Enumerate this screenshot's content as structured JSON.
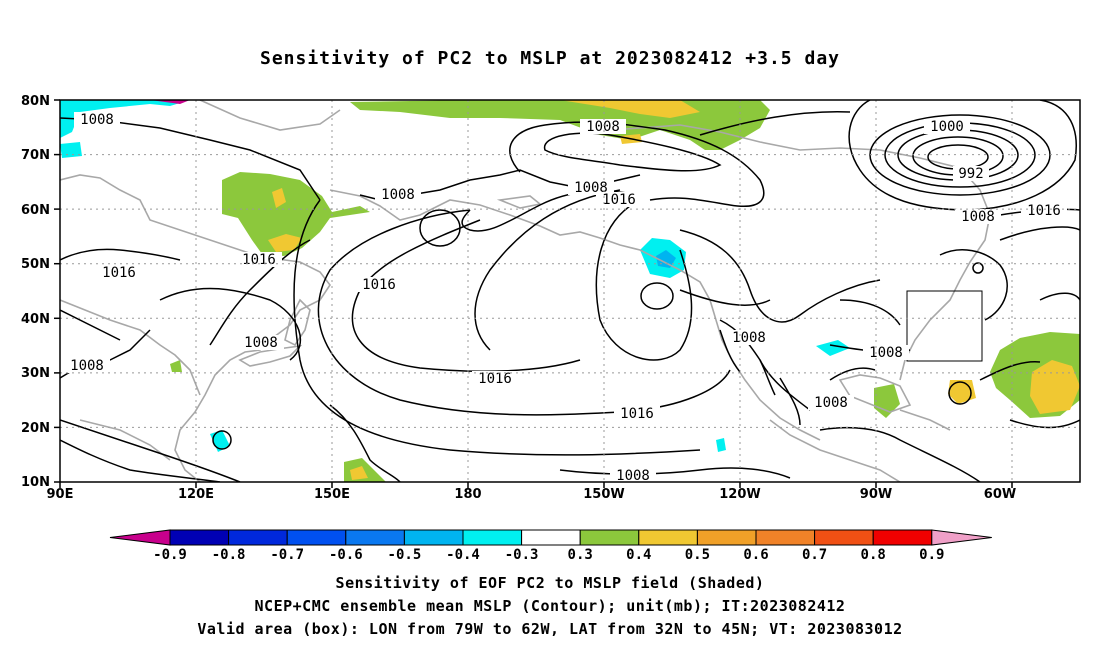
{
  "title": "Sensitivity of PC2 to MSLP at 2023082412 +3.5 day",
  "lat_labels": [
    "80N",
    "70N",
    "60N",
    "50N",
    "40N",
    "30N",
    "20N",
    "10N"
  ],
  "lon_labels": [
    "90E",
    "120E",
    "150E",
    "180",
    "150W",
    "120W",
    "90W",
    "60W"
  ],
  "contour_labels": [
    "1008",
    "1008",
    "1008",
    "1000",
    "992",
    "1008",
    "1016",
    "1016",
    "1008",
    "1016",
    "1016",
    "1008",
    "1008",
    "1008",
    "1016",
    "1016",
    "1008",
    "1008",
    "1008",
    "1016"
  ],
  "colorbar": {
    "labels": [
      "-0.9",
      "-0.8",
      "-0.7",
      "-0.6",
      "-0.5",
      "-0.4",
      "-0.3",
      "0.3",
      "0.4",
      "0.5",
      "0.6",
      "0.7",
      "0.8",
      "0.9"
    ],
    "colors": [
      "#c8008c",
      "#0000b4",
      "#0028dc",
      "#0050f0",
      "#0a78f0",
      "#00b4f0",
      "#00f0f0",
      "#ffffff",
      "#8cc83c",
      "#f0c832",
      "#f0a028",
      "#f08228",
      "#f05014",
      "#f00000",
      "#f0a0c8"
    ]
  },
  "caption": {
    "line1": "Sensitivity of EOF PC2 to MSLP field (Shaded)",
    "line2": "NCEP+CMC ensemble mean MSLP (Contour); unit(mb); IT:2023082412",
    "line3": "Valid area (box): LON from 79W to 62W, LAT from 32N to 45N; VT: 2023083012"
  },
  "valid_area": {
    "lon": [
      "79W",
      "62W"
    ],
    "lat": [
      "32N",
      "45N"
    ]
  }
}
